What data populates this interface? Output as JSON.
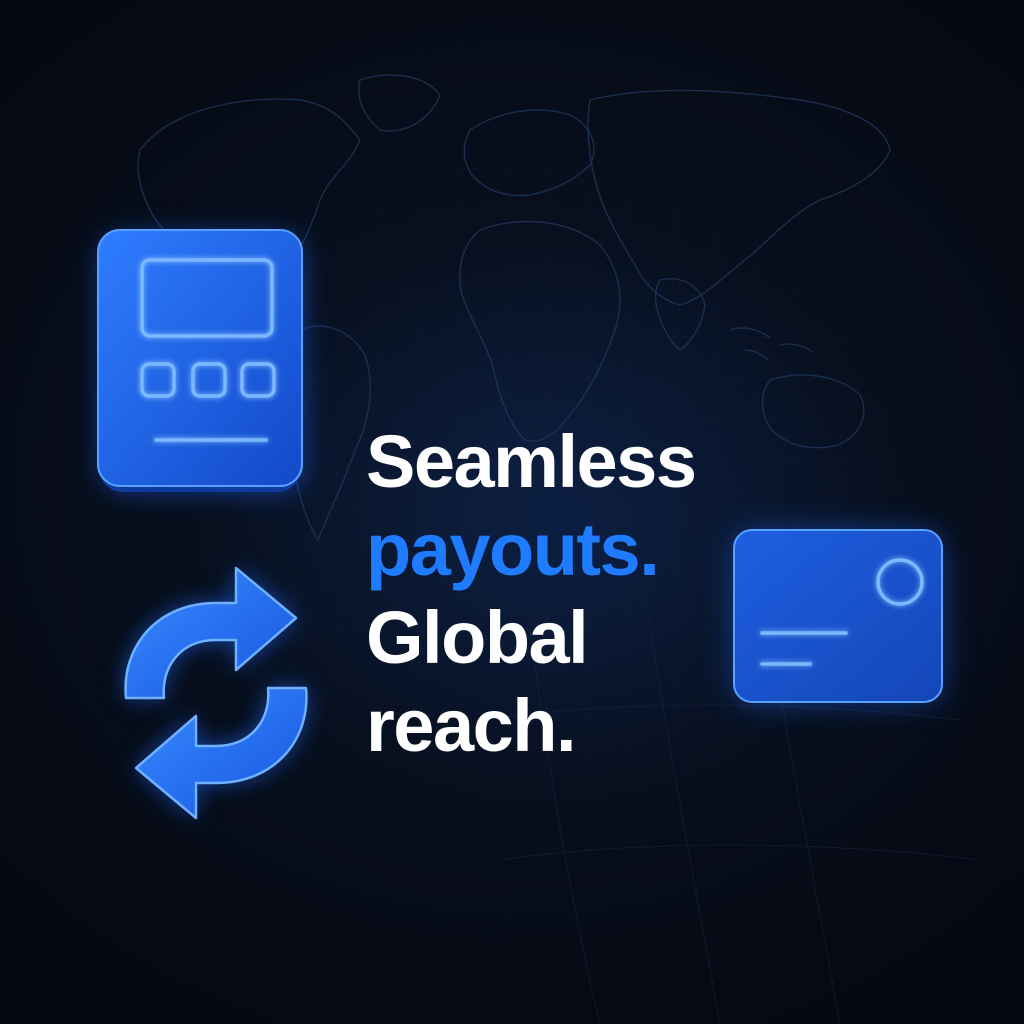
{
  "headline": {
    "line1": "Seamless",
    "line2": "payouts.",
    "line3": "Global",
    "line4": "reach."
  },
  "colors": {
    "background": "#060b16",
    "text": "#ffffff",
    "accent": "#1f7bff",
    "glow": "#2f7dff"
  },
  "icons": {
    "terminal": "payment-terminal-icon",
    "exchange": "exchange-arrows-icon",
    "card": "credit-card-icon",
    "map": "world-map"
  }
}
